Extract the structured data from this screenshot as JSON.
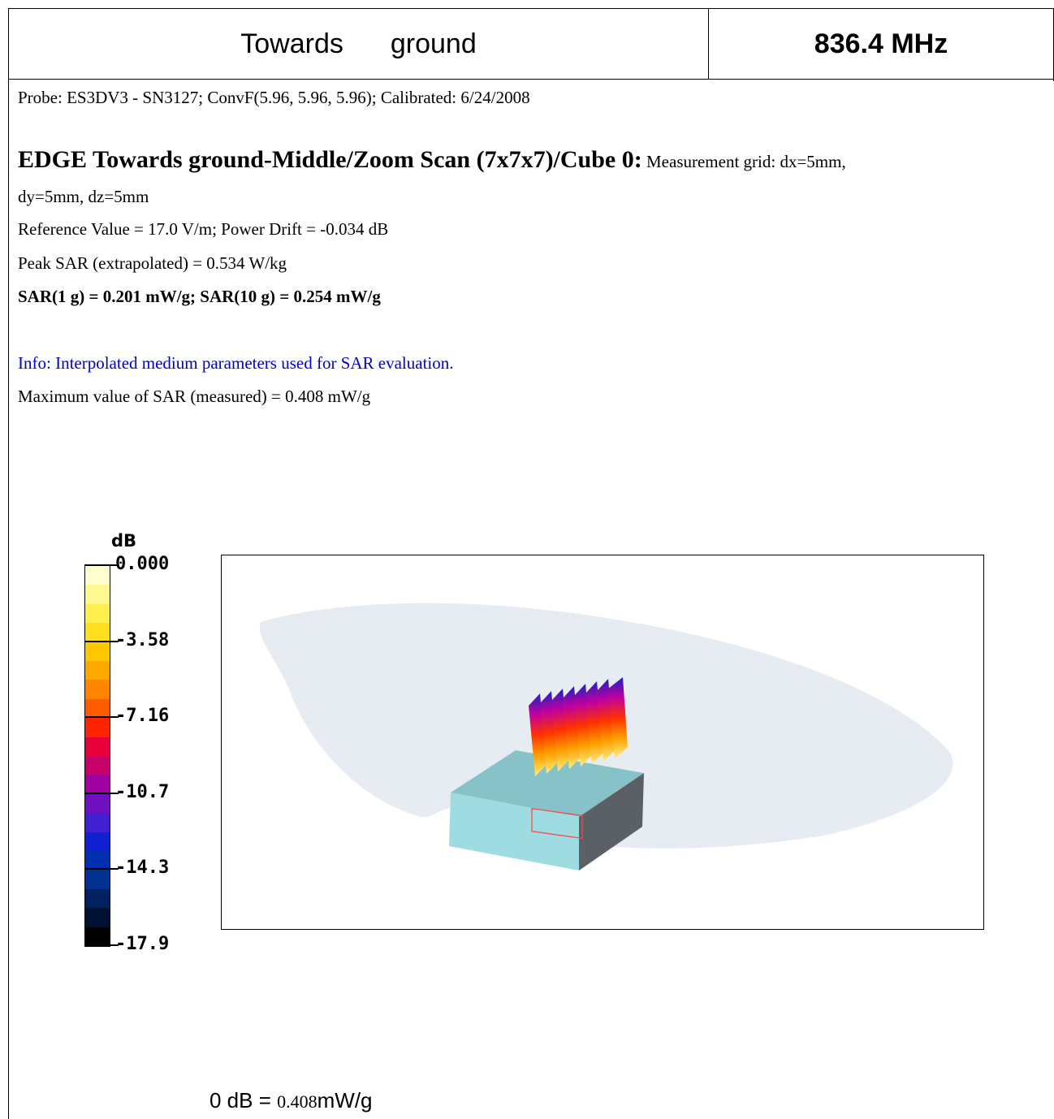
{
  "header": {
    "title_part1": "Towards",
    "title_part2": "ground",
    "frequency": "836.4 MHz"
  },
  "probe_line": "Probe: ES3DV3 - SN3127; ConvF(5.96, 5.96, 5.96); Calibrated: 6/24/2008",
  "scan": {
    "heading": "EDGE Towards ground-Middle/Zoom Scan (7x7x7)/Cube 0:",
    "grid_part1": " Measurement grid: dx=5mm,",
    "grid_part2": "dy=5mm, dz=5mm",
    "reference": "Reference Value = 17.0 V/m; Power Drift = -0.034 dB",
    "peak_sar": "Peak SAR (extrapolated) = 0.534 W/kg",
    "sar_values": "SAR(1 g) = 0.201 mW/g; SAR(10 g) = 0.254 mW/g"
  },
  "info": "Info: Interpolated medium parameters used for SAR evaluation.",
  "max_value": "Maximum value of SAR (measured) = 0.408 mW/g",
  "legend": {
    "unit": "dB",
    "ticks": [
      "0.000",
      "-3.58",
      "-7.16",
      "-10.7",
      "-14.3",
      "-17.9"
    ],
    "colors": [
      "#ffffd0",
      "#fff890",
      "#fff050",
      "#ffe020",
      "#ffc800",
      "#ffa800",
      "#ff8400",
      "#ff5c00",
      "#ff2400",
      "#e8003c",
      "#c8006c",
      "#a000a0",
      "#7010c0",
      "#4020d0",
      "#1020d0",
      "#0030b0",
      "#003090",
      "#002060",
      "#001030",
      "#000000"
    ]
  },
  "reference_line": {
    "prefix": "0 dB = ",
    "value": "0.408",
    "unit": "mW/g"
  }
}
